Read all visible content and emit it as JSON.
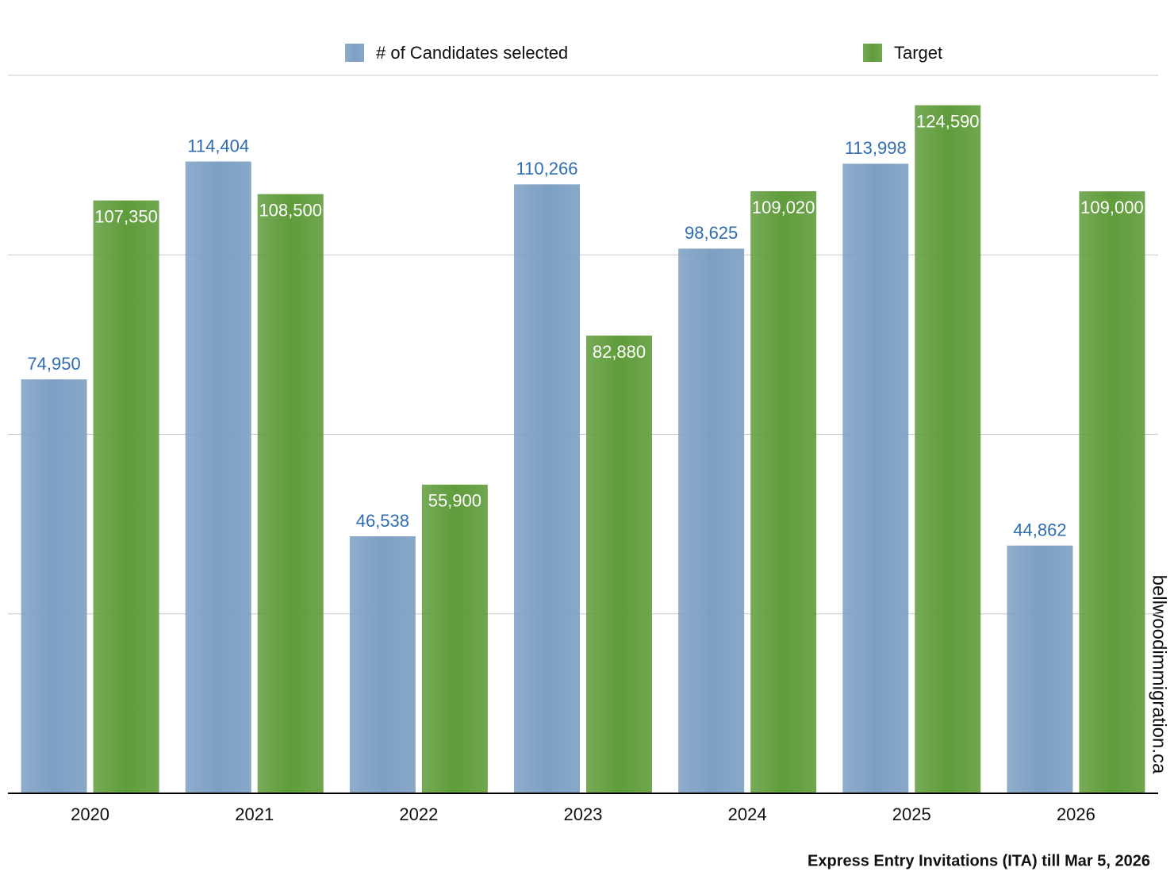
{
  "chart_data": {
    "type": "bar",
    "caption": "Express Entry Invitations (ITA) till Mar 5, 2026",
    "watermark": "bellwoodimmigration.ca",
    "categories": [
      "2020",
      "2021",
      "2022",
      "2023",
      "2024",
      "2025",
      "2026"
    ],
    "series": [
      {
        "name": "# of Candidates selected",
        "color": "#7c9fc3",
        "values": [
          74950,
          114404,
          46538,
          110266,
          98625,
          113998,
          44862
        ],
        "value_labels": [
          "74,950",
          "114,404",
          "46,538",
          "110,266",
          "98,625",
          "113,998",
          "44,862"
        ]
      },
      {
        "name": "Target",
        "color": "#5f9c3b",
        "values": [
          107350,
          108500,
          55900,
          82880,
          109020,
          124590,
          109000
        ],
        "value_labels": [
          "107,350",
          "108,500",
          "55,900",
          "82,880",
          "109,020",
          "124,590",
          "109,000"
        ]
      }
    ],
    "ylim": [
      0,
      130000
    ],
    "yticks": [
      32500,
      65000,
      97500,
      130000
    ],
    "grid": true
  }
}
